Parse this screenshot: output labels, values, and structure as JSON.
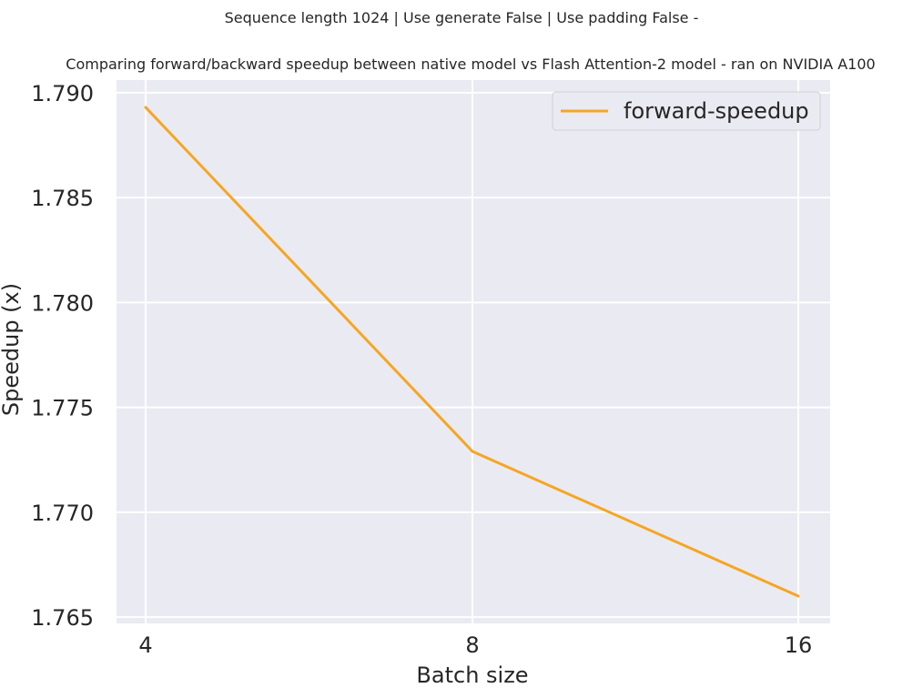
{
  "chart_data": {
    "type": "line",
    "title": [
      "Sequence length 1024 | Use generate False | Use padding False -",
      "Comparing forward/backward speedup between native model vs Flash Attention-2 model - ran on NVIDIA A100"
    ],
    "xlabel": "Batch size",
    "ylabel": "Speedup (x)",
    "x": [
      4,
      8,
      16
    ],
    "x_tick_labels": [
      "4",
      "8",
      "16"
    ],
    "x_scale": "categorical",
    "y_ticks": [
      1.765,
      1.77,
      1.775,
      1.78,
      1.785,
      1.79
    ],
    "y_tick_labels": [
      "1.765",
      "1.770",
      "1.775",
      "1.780",
      "1.785",
      "1.790"
    ],
    "ylim": [
      1.7647,
      1.7906
    ],
    "grid": true,
    "legend_position": "top-right",
    "series": [
      {
        "name": "forward-speedup",
        "color": "#F5A623",
        "values": [
          1.7893,
          1.7729,
          1.766
        ]
      }
    ]
  }
}
